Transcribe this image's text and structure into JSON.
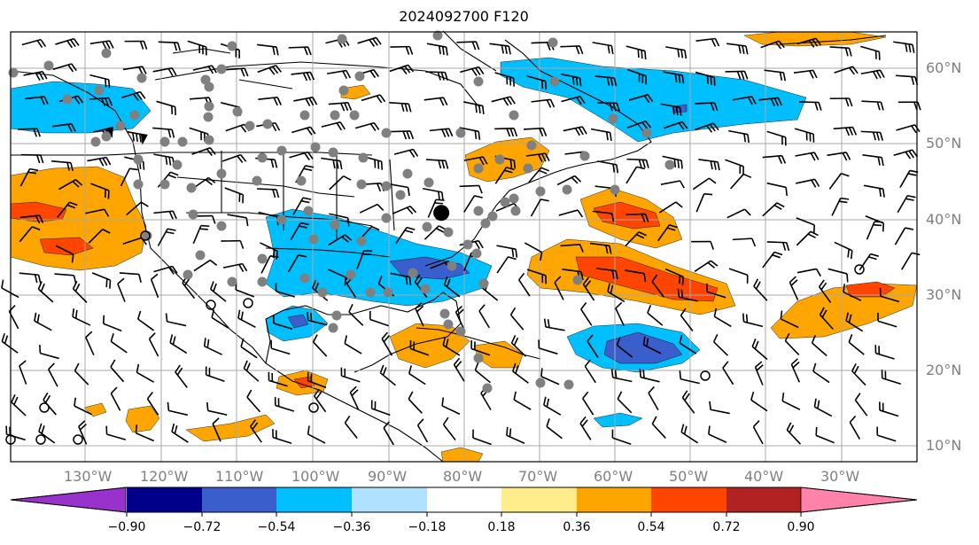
{
  "title": "2024092700 F120",
  "lat_labels": [
    "60°N",
    "50°N",
    "40°N",
    "30°N",
    "20°N",
    "10°N"
  ],
  "lon_labels": [
    "130°W",
    "120°W",
    "110°W",
    "100°W",
    "90°W",
    "80°W",
    "70°W",
    "60°W",
    "50°W",
    "40°W",
    "30°W"
  ],
  "colorbar": {
    "ticks": [
      "−0.90",
      "−0.72",
      "−0.54",
      "−0.36",
      "−0.18",
      "0.18",
      "0.36",
      "0.54",
      "0.72",
      "0.90"
    ],
    "colors": [
      "#9932cc",
      "#00008b",
      "#3a5fcd",
      "#00bfff",
      "#b0e2ff",
      "#ffffff",
      "#ffec8b",
      "#ffa500",
      "#ff4500",
      "#b22222",
      "#ff82ab"
    ]
  },
  "colors": {
    "orange": "#ffa500",
    "red_orange": "#ff4500",
    "light_blue": "#00bfff",
    "blue": "#3a5fcd",
    "station": "#808080",
    "grid": "#a9a9a9"
  },
  "map": {
    "lon_range": [
      -138,
      -17
    ],
    "lat_range": [
      8,
      65
    ],
    "center_marker": {
      "lon": -80.5,
      "lat": 41.0
    }
  }
}
